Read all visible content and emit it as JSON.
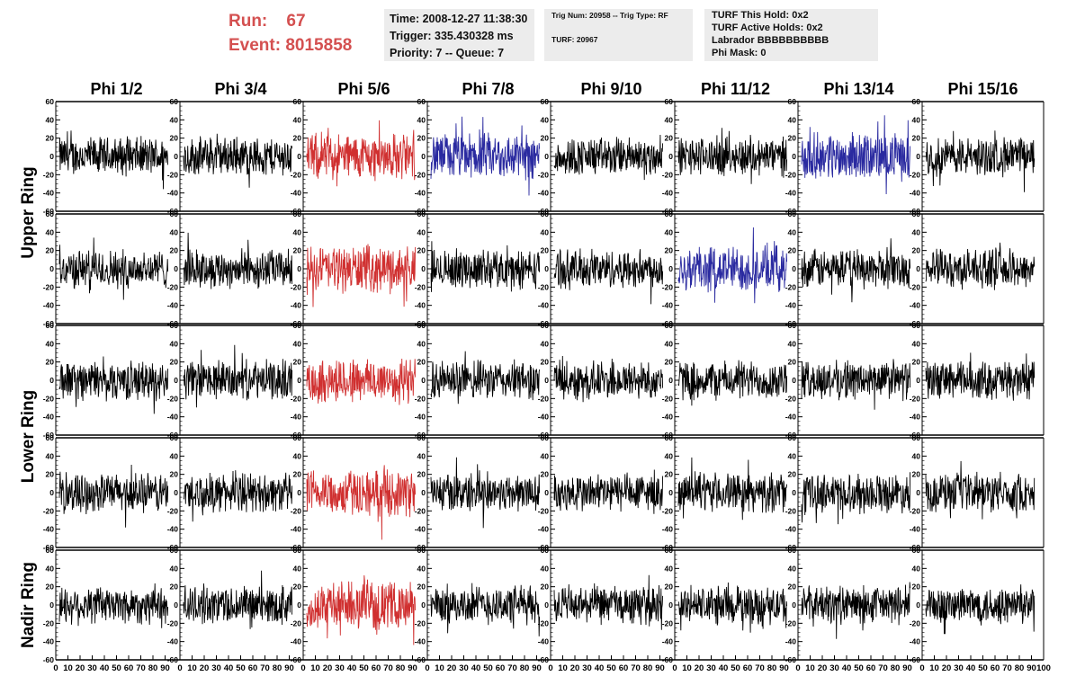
{
  "header": {
    "run_label": "Run:",
    "run_value": "67",
    "event_label": "Event:",
    "event_value": "8015858"
  },
  "time_box": {
    "time": "Time: 2008-12-27 11:38:30",
    "trigger": "Trigger: 335.430328 ms",
    "priority": "Priority: 7 -- Queue: 7"
  },
  "trig_box": {
    "trig": "Trig Num: 20958 -- Trig Type: RF",
    "turf": "TURF: 20967"
  },
  "turf_box": {
    "hold": "TURF This Hold: 0x2",
    "active": "TURF Active Holds: 0x2",
    "labrador": "Labrador BBBBBBBBBB",
    "phi_mask": "Phi Mask: 0"
  },
  "chart_data": {
    "type": "line",
    "columns": [
      "Phi 1/2",
      "Phi 3/4",
      "Phi 5/6",
      "Phi 7/8",
      "Phi 9/10",
      "Phi 11/12",
      "Phi 13/14",
      "Phi 15/16"
    ],
    "ring_labels": [
      "Upper Ring",
      "Lower Ring",
      "Nadir Ring"
    ],
    "rows": 5,
    "ylim": [
      -60,
      60
    ],
    "yticks": [
      -60,
      -40,
      -20,
      0,
      20,
      40,
      60
    ],
    "xlim": [
      0,
      100
    ],
    "xticks": [
      0,
      10,
      20,
      30,
      40,
      50,
      60,
      70,
      80,
      90,
      100
    ],
    "grid": false,
    "colors": {
      "normal": "#000000",
      "red": "#d03030",
      "blue": "#2a2aa0"
    },
    "highlighted_panels": [
      {
        "row": 0,
        "col": 2,
        "color": "red"
      },
      {
        "row": 1,
        "col": 2,
        "color": "red"
      },
      {
        "row": 2,
        "col": 2,
        "color": "red"
      },
      {
        "row": 3,
        "col": 2,
        "color": "red"
      },
      {
        "row": 4,
        "col": 2,
        "color": "red"
      },
      {
        "row": 0,
        "col": 3,
        "color": "blue"
      },
      {
        "row": 0,
        "col": 6,
        "color": "blue"
      },
      {
        "row": 1,
        "col": 5,
        "color": "blue"
      }
    ],
    "waveform_points": 260,
    "waveform_amplitude_typical": 20
  }
}
